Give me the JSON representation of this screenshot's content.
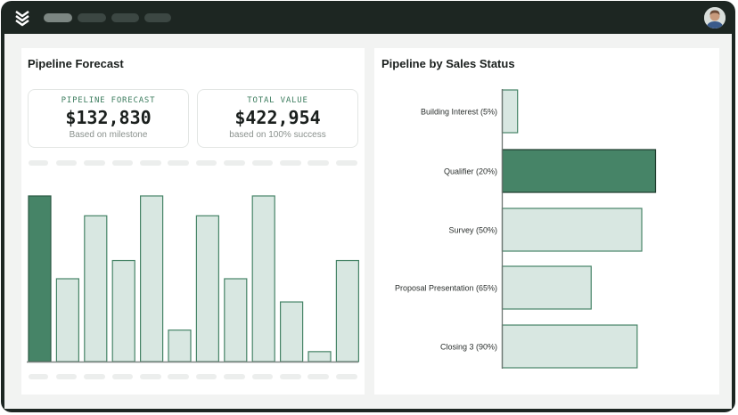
{
  "colors": {
    "accent": "#468467",
    "bar_light": "#d8e7e1",
    "bar_stroke": "#468467",
    "frame": "#1d2622"
  },
  "header": {
    "logo_icon": "stacked-layers-icon",
    "nav_pill_count": 4,
    "avatar_icon": "user-avatar-icon"
  },
  "forecast": {
    "title": "Pipeline Forecast",
    "card1": {
      "label": "PIPELINE FORECAST",
      "value": "$132,830",
      "sub": "Based on milestone"
    },
    "card2": {
      "label": "TOTAL VALUE",
      "value": "$422,954",
      "sub": "based on 100% success"
    }
  },
  "status": {
    "title": "Pipeline by Sales Status"
  },
  "chart_data": [
    {
      "type": "bar",
      "title": "Pipeline Forecast",
      "orientation": "vertical",
      "categories": [
        "",
        "",
        "",
        "",
        "",
        "",
        "",
        "",
        "",
        "",
        "",
        ""
      ],
      "values": [
        100,
        50,
        88,
        61,
        100,
        19,
        88,
        50,
        100,
        36,
        6,
        61
      ],
      "highlight_index": 0,
      "ylim": [
        0,
        100
      ],
      "xlabel": "",
      "ylabel": "",
      "grid": false
    },
    {
      "type": "bar",
      "title": "Pipeline by Sales Status",
      "orientation": "horizontal",
      "categories": [
        "Building Interest (5%)",
        "Qualifier (20%)",
        "Survey (50%)",
        "Proposal Presentation (65%)",
        "Closing 3 (90%)"
      ],
      "values": [
        10,
        100,
        91,
        58,
        88
      ],
      "highlight_index": 1,
      "xlim": [
        0,
        100
      ],
      "xlabel": "",
      "ylabel": "",
      "grid": false
    }
  ]
}
